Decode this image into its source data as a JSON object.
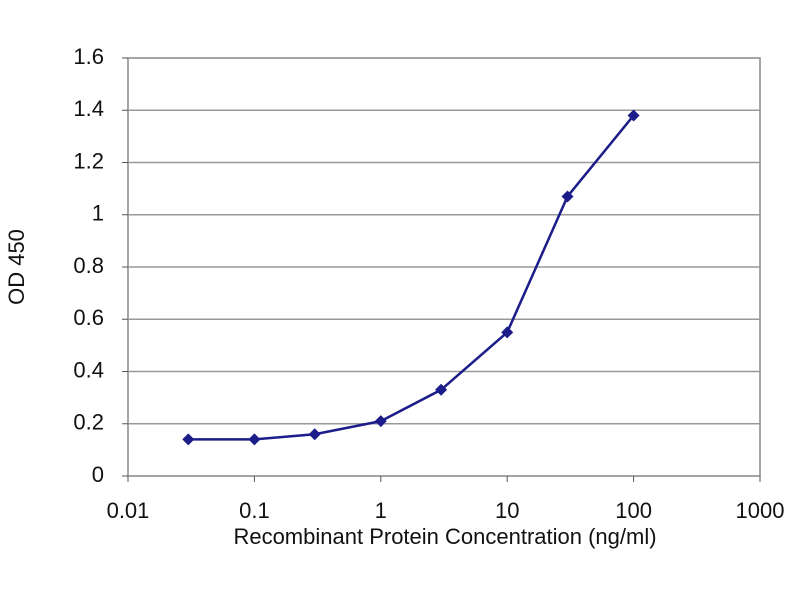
{
  "chart_data": {
    "type": "line",
    "xlabel": "Recombinant Protein Concentration (ng/ml)",
    "ylabel": "OD 450",
    "xscale": "log",
    "grid": true,
    "series": [
      {
        "color": "#1c1c8a",
        "x": [
          0.03,
          0.1,
          0.3,
          1,
          3,
          10,
          30,
          100
        ],
        "values": [
          0.14,
          0.14,
          0.16,
          0.21,
          0.33,
          0.55,
          1.07,
          1.38
        ]
      }
    ],
    "xlim": [
      0.01,
      1000
    ],
    "xticks": [
      0.01,
      0.1,
      1,
      10,
      100,
      1000
    ],
    "ylim": [
      0,
      1.6
    ],
    "yticks": [
      0,
      0.2,
      0.4,
      0.6,
      0.8,
      1,
      1.2,
      1.4,
      1.6
    ]
  }
}
